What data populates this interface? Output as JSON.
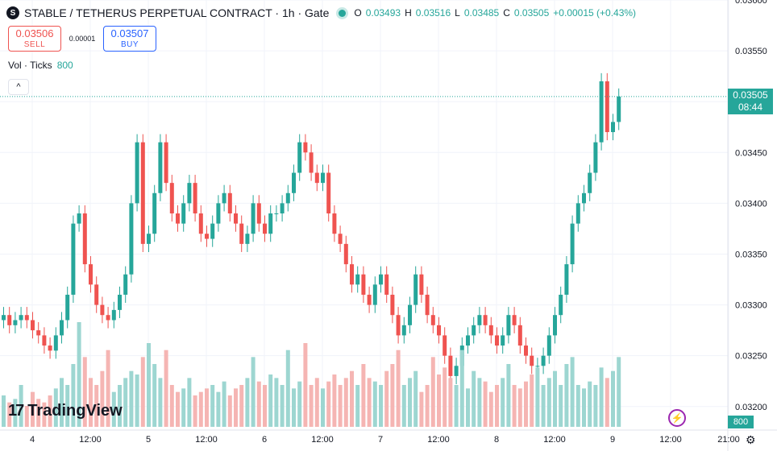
{
  "header": {
    "symbol_icon": "S",
    "title": "STABLE / TETHERUS PERPETUAL CONTRACT · 1h · Gate",
    "ohlc": {
      "o_label": "O",
      "o": "0.03493",
      "h_label": "H",
      "h": "0.03516",
      "l_label": "L",
      "l": "0.03485",
      "c_label": "C",
      "c": "0.03505",
      "change": "+0.00015 (+0.43%)"
    }
  },
  "trade": {
    "sell_price": "0.03506",
    "sell_label": "SELL",
    "spread": "0.00001",
    "buy_price": "0.03507",
    "buy_label": "BUY"
  },
  "volume_legend": {
    "label": "Vol · Ticks",
    "value": "800"
  },
  "collapse_icon": "chevron-up-icon",
  "branding": "TradingView",
  "last_price": {
    "price": "0.03505",
    "countdown": "08:44"
  },
  "volume_badge": "800",
  "colors": {
    "up": "#26a69a",
    "down": "#ef5350",
    "up_vol": "#9dd6d1",
    "down_vol": "#f5b5b3",
    "grid": "#f0f3fa"
  },
  "chart_data": {
    "type": "candlestick",
    "y_ticks": [
      "0.03600",
      "0.03550",
      "0.03500",
      "0.03450",
      "0.03400",
      "0.03350",
      "0.03300",
      "0.03250",
      "0.03200"
    ],
    "x_ticks": [
      "4",
      "12:00",
      "5",
      "12:00",
      "6",
      "12:00",
      "7",
      "12:00",
      "8",
      "12:00",
      "9",
      "12:00",
      "21:00"
    ],
    "ylim": [
      0.0318,
      0.036
    ],
    "last_price": 0.03505,
    "price_series": [
      0.0329,
      0.0328,
      0.03285,
      0.0329,
      0.03285,
      0.03275,
      0.0327,
      0.0326,
      0.03255,
      0.0327,
      0.03285,
      0.0331,
      0.0338,
      0.0339,
      0.0334,
      0.0332,
      0.033,
      0.0329,
      0.03285,
      0.03295,
      0.0331,
      0.0333,
      0.034,
      0.0346,
      0.0336,
      0.0337,
      0.0341,
      0.0346,
      0.0342,
      0.0339,
      0.0338,
      0.034,
      0.0342,
      0.0339,
      0.0337,
      0.03365,
      0.0338,
      0.034,
      0.0341,
      0.0339,
      0.0338,
      0.0336,
      0.0337,
      0.034,
      0.0338,
      0.0337,
      0.0339,
      0.0339,
      0.034,
      0.0341,
      0.0343,
      0.0346,
      0.0345,
      0.0343,
      0.0342,
      0.0343,
      0.0339,
      0.0337,
      0.0336,
      0.0334,
      0.0332,
      0.0333,
      0.0331,
      0.033,
      0.0332,
      0.0333,
      0.0331,
      0.0329,
      0.0327,
      0.0328,
      0.033,
      0.0333,
      0.0331,
      0.0329,
      0.0328,
      0.0327,
      0.0325,
      0.0323,
      0.0324,
      0.0326,
      0.0327,
      0.0328,
      0.0329,
      0.0328,
      0.0327,
      0.0326,
      0.0327,
      0.0329,
      0.0328,
      0.0326,
      0.0325,
      0.0324,
      0.0324,
      0.0325,
      0.0327,
      0.0329,
      0.0331,
      0.0334,
      0.0338,
      0.034,
      0.0341,
      0.0343,
      0.0346,
      0.0352,
      0.0347,
      0.0348,
      0.03505
    ],
    "volume_series": [
      9,
      7,
      8,
      12,
      6,
      10,
      8,
      7,
      9,
      11,
      14,
      12,
      18,
      30,
      20,
      14,
      12,
      16,
      22,
      10,
      12,
      14,
      16,
      15,
      20,
      24,
      18,
      14,
      22,
      12,
      10,
      11,
      14,
      9,
      10,
      11,
      12,
      10,
      13,
      9,
      11,
      12,
      14,
      20,
      13,
      12,
      15,
      14,
      12,
      22,
      11,
      13,
      24,
      12,
      14,
      11,
      13,
      15,
      12,
      14,
      16,
      12,
      18,
      14,
      13,
      12,
      16,
      18,
      22,
      12,
      14,
      16,
      10,
      12,
      20,
      15,
      17,
      14,
      12,
      22,
      11,
      16,
      14,
      13,
      10,
      12,
      14,
      18,
      12,
      11,
      13,
      15,
      17,
      12,
      14,
      16,
      12,
      18,
      20,
      12,
      11,
      13,
      12,
      17,
      14,
      16,
      20
    ]
  }
}
